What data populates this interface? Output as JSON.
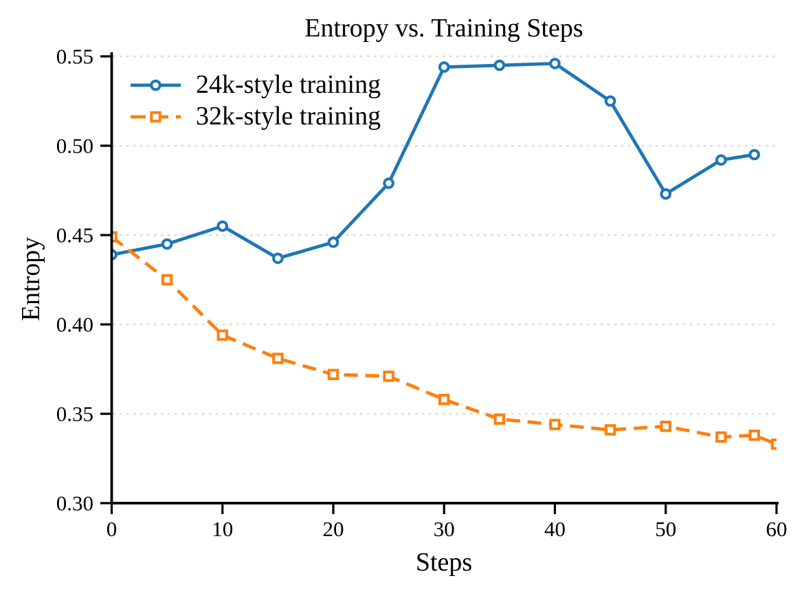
{
  "chart_data": {
    "type": "line",
    "title": "Entropy vs. Training Steps",
    "xlabel": "Steps",
    "ylabel": "Entropy",
    "xlim": [
      0,
      60
    ],
    "ylim": [
      0.3,
      0.5525
    ],
    "xticks": [
      0,
      10,
      20,
      30,
      40,
      50,
      60
    ],
    "yticks": [
      0.3,
      0.35,
      0.4,
      0.45,
      0.5,
      0.55
    ],
    "ytick_labels": [
      "0.30",
      "0.35",
      "0.40",
      "0.45",
      "0.50",
      "0.55"
    ],
    "grid": "horizontal-dotted",
    "grid_color": "#dcdcdc",
    "legend_position": "upper-left",
    "series": [
      {
        "name": "24k-style training",
        "color": "#1f77b4",
        "marker": "circle",
        "linestyle": "solid",
        "x": [
          0,
          5,
          10,
          15,
          20,
          25,
          30,
          35,
          40,
          45,
          50,
          55,
          58
        ],
        "y": [
          0.439,
          0.445,
          0.455,
          0.437,
          0.446,
          0.479,
          0.544,
          0.545,
          0.546,
          0.525,
          0.473,
          0.492,
          0.495
        ]
      },
      {
        "name": "32k-style training",
        "color": "#ff7f0e",
        "marker": "square",
        "linestyle": "dashed",
        "x": [
          0,
          5,
          10,
          15,
          20,
          25,
          30,
          35,
          40,
          45,
          50,
          55,
          58,
          60
        ],
        "y": [
          0.449,
          0.425,
          0.394,
          0.381,
          0.372,
          0.371,
          0.358,
          0.347,
          0.344,
          0.341,
          0.343,
          0.337,
          0.338,
          0.333
        ]
      }
    ]
  }
}
